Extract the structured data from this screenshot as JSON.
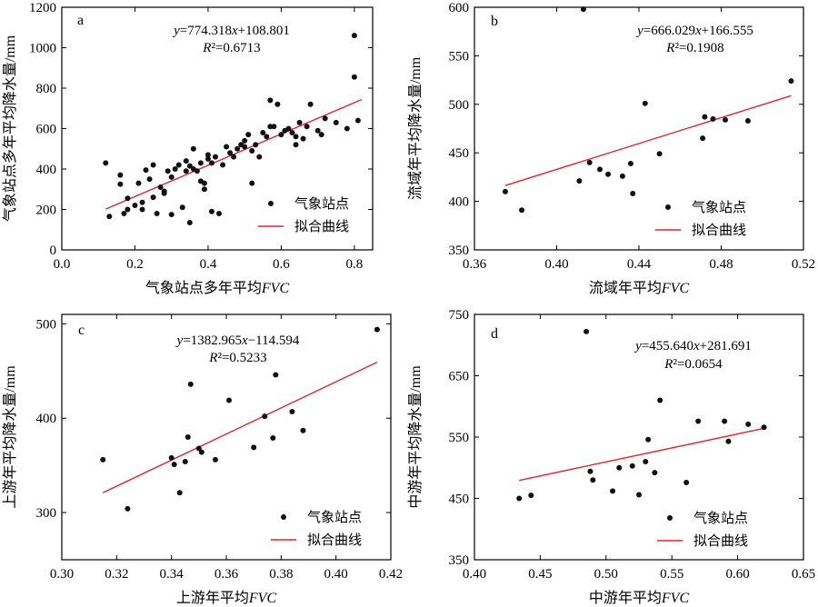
{
  "chart_data": [
    {
      "type": "scatter",
      "panel_label": "a",
      "equation": "y=774.318x+108.801",
      "r2": "R²=0.6713",
      "xlabel": "气象站点多年平均FVC",
      "ylabel": "气象站点多年平均降水量/mm",
      "xlim": [
        0.0,
        0.85
      ],
      "ylim": [
        0,
        1200
      ],
      "xticks": [
        0.0,
        0.2,
        0.4,
        0.6,
        0.8
      ],
      "yticks": [
        0,
        200,
        400,
        600,
        800,
        1000,
        1200
      ],
      "xtick_labels": [
        "0.0",
        "0.2",
        "0.4",
        "0.6",
        "0.8"
      ],
      "ytick_labels": [
        "0",
        "200",
        "400",
        "600",
        "800",
        "1000",
        "1200"
      ],
      "legend": [
        "气象站点",
        "拟合曲线"
      ],
      "fit": {
        "slope": 774.318,
        "intercept": 108.801,
        "x_range": [
          0.12,
          0.82
        ]
      },
      "series": [
        {
          "name": "气象站点",
          "points": [
            [
              0.12,
              430
            ],
            [
              0.13,
              165
            ],
            [
              0.16,
              325
            ],
            [
              0.16,
              370
            ],
            [
              0.17,
              180
            ],
            [
              0.18,
              200
            ],
            [
              0.18,
              255
            ],
            [
              0.2,
              220
            ],
            [
              0.21,
              330
            ],
            [
              0.22,
              235
            ],
            [
              0.22,
              200
            ],
            [
              0.23,
              395
            ],
            [
              0.24,
              350
            ],
            [
              0.25,
              420
            ],
            [
              0.25,
              260
            ],
            [
              0.26,
              180
            ],
            [
              0.27,
              310
            ],
            [
              0.28,
              290
            ],
            [
              0.28,
              280
            ],
            [
              0.29,
              390
            ],
            [
              0.3,
              360
            ],
            [
              0.3,
              175
            ],
            [
              0.31,
              400
            ],
            [
              0.32,
              420
            ],
            [
              0.33,
              210
            ],
            [
              0.34,
              390
            ],
            [
              0.34,
              440
            ],
            [
              0.35,
              415
            ],
            [
              0.35,
              135
            ],
            [
              0.36,
              400
            ],
            [
              0.36,
              500
            ],
            [
              0.37,
              390
            ],
            [
              0.38,
              430
            ],
            [
              0.38,
              340
            ],
            [
              0.39,
              300
            ],
            [
              0.39,
              330
            ],
            [
              0.4,
              470
            ],
            [
              0.4,
              450
            ],
            [
              0.41,
              190
            ],
            [
              0.41,
              430
            ],
            [
              0.42,
              460
            ],
            [
              0.43,
              180
            ],
            [
              0.44,
              420
            ],
            [
              0.45,
              510
            ],
            [
              0.46,
              480
            ],
            [
              0.47,
              460
            ],
            [
              0.48,
              500
            ],
            [
              0.49,
              520
            ],
            [
              0.5,
              540
            ],
            [
              0.5,
              510
            ],
            [
              0.51,
              570
            ],
            [
              0.52,
              490
            ],
            [
              0.52,
              330
            ],
            [
              0.53,
              520
            ],
            [
              0.54,
              460
            ],
            [
              0.55,
              580
            ],
            [
              0.56,
              560
            ],
            [
              0.57,
              740
            ],
            [
              0.57,
              610
            ],
            [
              0.58,
              610
            ],
            [
              0.59,
              720
            ],
            [
              0.6,
              570
            ],
            [
              0.61,
              590
            ],
            [
              0.62,
              600
            ],
            [
              0.63,
              580
            ],
            [
              0.64,
              520
            ],
            [
              0.64,
              560
            ],
            [
              0.65,
              630
            ],
            [
              0.66,
              550
            ],
            [
              0.67,
              610
            ],
            [
              0.68,
              720
            ],
            [
              0.7,
              590
            ],
            [
              0.71,
              570
            ],
            [
              0.72,
              650
            ],
            [
              0.75,
              630
            ],
            [
              0.78,
              600
            ],
            [
              0.8,
              855
            ],
            [
              0.8,
              1060
            ],
            [
              0.81,
              640
            ]
          ]
        }
      ]
    },
    {
      "type": "scatter",
      "panel_label": "b",
      "equation": "y=666.029x+166.555",
      "r2": "R²=0.1908",
      "xlabel": "流域年平均FVC",
      "ylabel": "流域年平均降水量/mm",
      "xlim": [
        0.36,
        0.52
      ],
      "ylim": [
        350,
        600
      ],
      "xticks": [
        0.36,
        0.4,
        0.44,
        0.48,
        0.52
      ],
      "yticks": [
        350,
        400,
        450,
        500,
        550,
        600
      ],
      "xtick_labels": [
        "0.36",
        "0.40",
        "0.44",
        "0.48",
        "0.52"
      ],
      "ytick_labels": [
        "350",
        "400",
        "450",
        "500",
        "550",
        "600"
      ],
      "legend": [
        "气象站点",
        "拟合曲线"
      ],
      "fit": {
        "slope": 666.029,
        "intercept": 166.555,
        "x_range": [
          0.375,
          0.514
        ]
      },
      "series": [
        {
          "name": "气象站点",
          "points": [
            [
              0.375,
              410
            ],
            [
              0.383,
              391
            ],
            [
              0.411,
              421
            ],
            [
              0.413,
              598
            ],
            [
              0.416,
              440
            ],
            [
              0.421,
              433
            ],
            [
              0.425,
              428
            ],
            [
              0.432,
              426
            ],
            [
              0.436,
              439
            ],
            [
              0.437,
              408
            ],
            [
              0.443,
              501
            ],
            [
              0.45,
              449
            ],
            [
              0.471,
              465
            ],
            [
              0.472,
              487
            ],
            [
              0.476,
              485
            ],
            [
              0.482,
              484
            ],
            [
              0.493,
              483
            ],
            [
              0.514,
              524
            ]
          ]
        }
      ]
    },
    {
      "type": "scatter",
      "panel_label": "c",
      "equation": "y=1382.965x−114.594",
      "r2": "R²=0.5233",
      "xlabel": "上游年平均FVC",
      "ylabel": "上游年平均降水量/mm",
      "xlim": [
        0.3,
        0.42
      ],
      "ylim": [
        250,
        510
      ],
      "xticks": [
        0.3,
        0.32,
        0.34,
        0.36,
        0.38,
        0.4,
        0.42
      ],
      "yticks": [
        300,
        400,
        500
      ],
      "xtick_labels": [
        "0.30",
        "0.32",
        "0.34",
        "0.36",
        "0.38",
        "0.40",
        "0.42"
      ],
      "ytick_labels": [
        "300",
        "400",
        "500"
      ],
      "legend": [
        "气象站点",
        "拟合曲线"
      ],
      "fit": {
        "slope": 1382.965,
        "intercept": -114.594,
        "x_range": [
          0.315,
          0.415
        ]
      },
      "series": [
        {
          "name": "气象站点",
          "points": [
            [
              0.315,
              356
            ],
            [
              0.324,
              304
            ],
            [
              0.34,
              358
            ],
            [
              0.341,
              351
            ],
            [
              0.343,
              321
            ],
            [
              0.345,
              354
            ],
            [
              0.346,
              380
            ],
            [
              0.347,
              436
            ],
            [
              0.35,
              368
            ],
            [
              0.351,
              364
            ],
            [
              0.356,
              356
            ],
            [
              0.361,
              419
            ],
            [
              0.37,
              369
            ],
            [
              0.374,
              402
            ],
            [
              0.377,
              379
            ],
            [
              0.378,
              446
            ],
            [
              0.384,
              407
            ],
            [
              0.388,
              387
            ],
            [
              0.415,
              494
            ]
          ]
        }
      ]
    },
    {
      "type": "scatter",
      "panel_label": "d",
      "equation": "y=455.640x+281.691",
      "r2": "R²=0.0654",
      "xlabel": "中游年平均FVC",
      "ylabel": "中游年平均降水量/mm",
      "xlim": [
        0.4,
        0.65
      ],
      "ylim": [
        350,
        750
      ],
      "xticks": [
        0.4,
        0.45,
        0.5,
        0.55,
        0.6,
        0.65
      ],
      "yticks": [
        350,
        450,
        550,
        650,
        750
      ],
      "xtick_labels": [
        "0.40",
        "0.45",
        "0.50",
        "0.55",
        "0.60",
        "0.65"
      ],
      "ytick_labels": [
        "350",
        "450",
        "550",
        "650",
        "750"
      ],
      "legend": [
        "气象站点",
        "拟合曲线"
      ],
      "fit": {
        "slope": 455.64,
        "intercept": 281.691,
        "x_range": [
          0.434,
          0.621
        ]
      },
      "series": [
        {
          "name": "气象站点",
          "points": [
            [
              0.434,
              450
            ],
            [
              0.443,
              455
            ],
            [
              0.485,
              722
            ],
            [
              0.488,
              494
            ],
            [
              0.49,
              480
            ],
            [
              0.505,
              462
            ],
            [
              0.51,
              500
            ],
            [
              0.52,
              503
            ],
            [
              0.525,
              456
            ],
            [
              0.53,
              510
            ],
            [
              0.532,
              546
            ],
            [
              0.537,
              492
            ],
            [
              0.541,
              610
            ],
            [
              0.561,
              476
            ],
            [
              0.57,
              576
            ],
            [
              0.59,
              576
            ],
            [
              0.593,
              543
            ],
            [
              0.608,
              571
            ],
            [
              0.62,
              566
            ]
          ]
        }
      ]
    }
  ]
}
